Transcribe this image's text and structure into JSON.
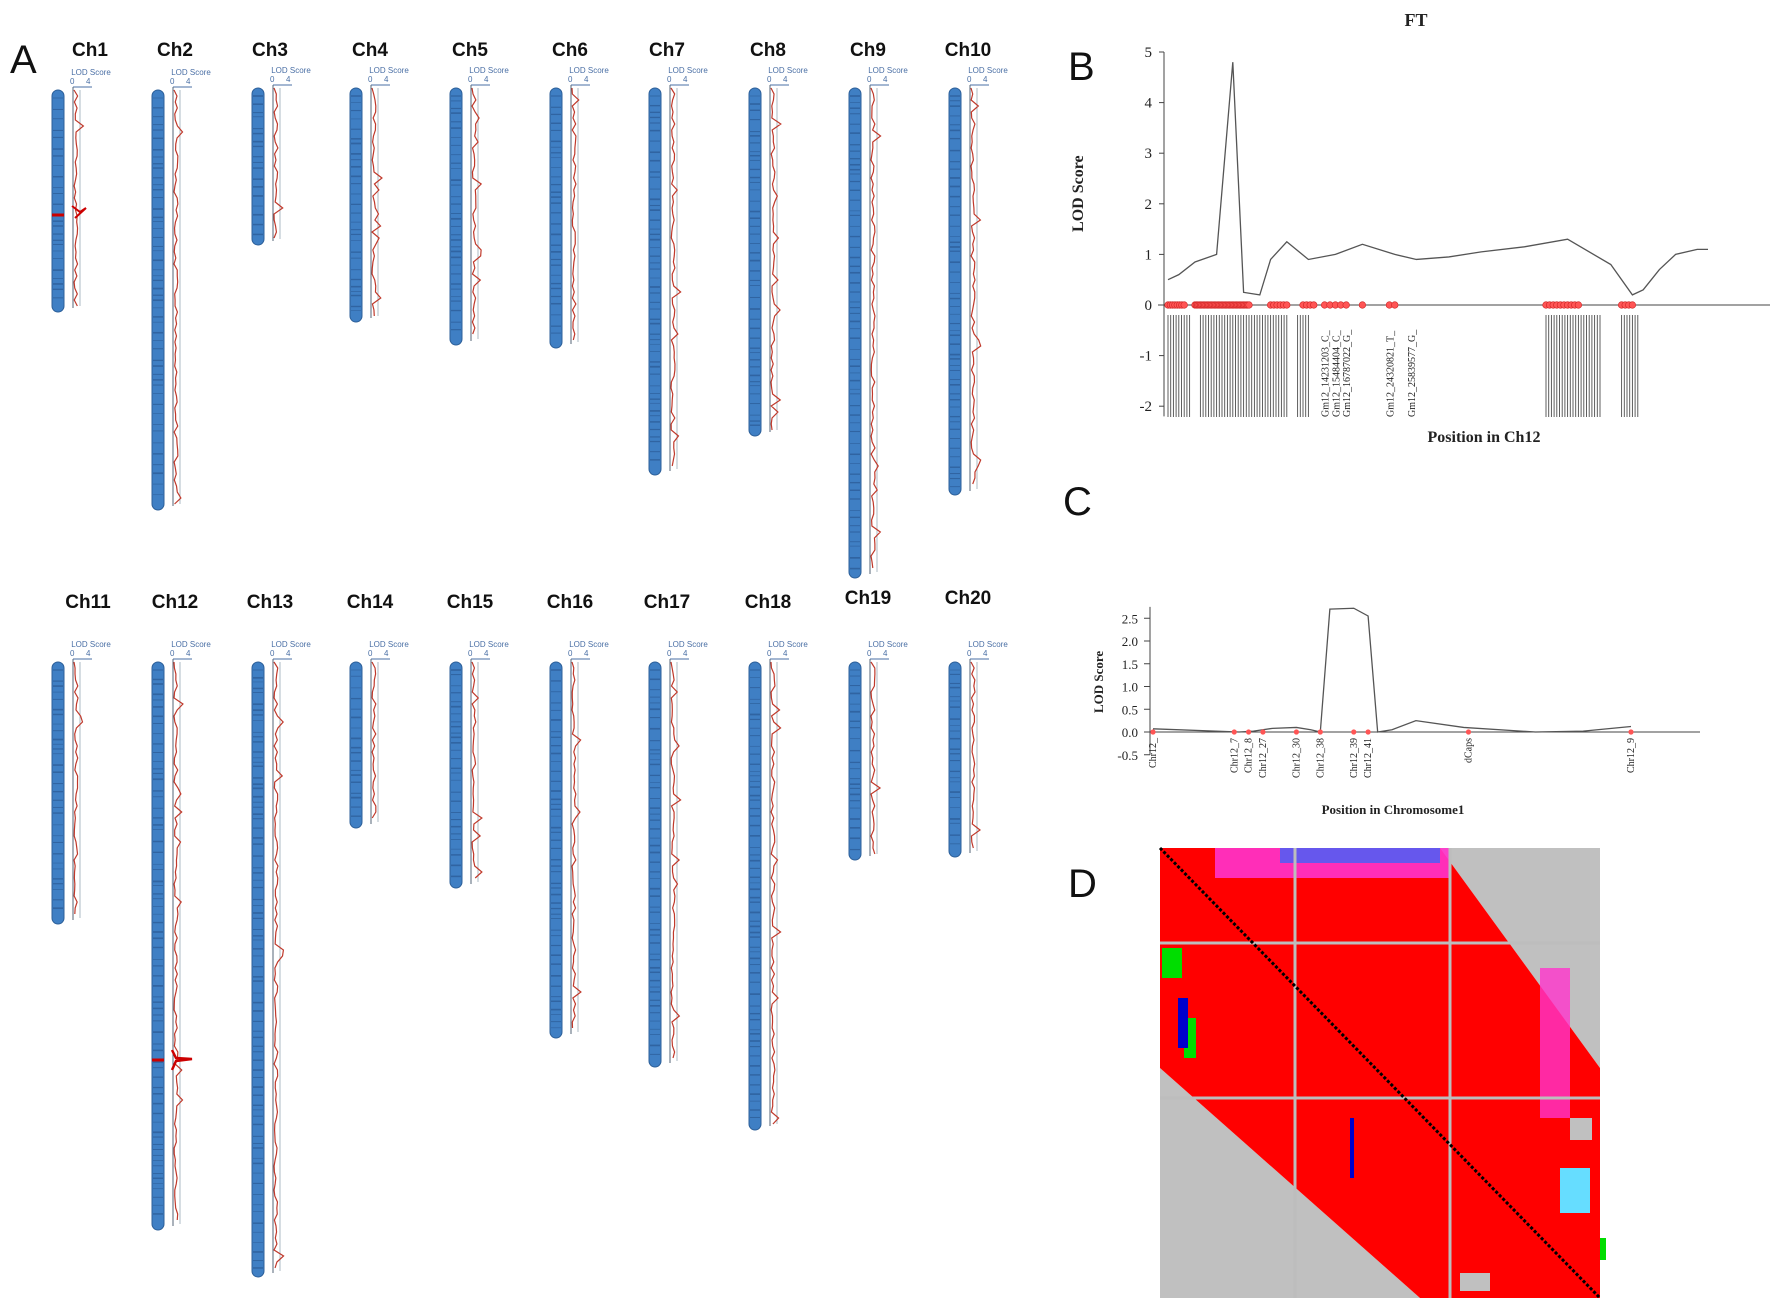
{
  "panel_a": {
    "letter": "A",
    "lod_axis_title": "LOD Score",
    "lod_ticks": [
      "0",
      "4"
    ],
    "chromosomes": [
      {
        "label": "Ch1"
      },
      {
        "label": "Ch2"
      },
      {
        "label": "Ch3"
      },
      {
        "label": "Ch4"
      },
      {
        "label": "Ch5"
      },
      {
        "label": "Ch6"
      },
      {
        "label": "Ch7"
      },
      {
        "label": "Ch8"
      },
      {
        "label": "Ch9"
      },
      {
        "label": "Ch10"
      },
      {
        "label": "Ch11"
      },
      {
        "label": "Ch12"
      },
      {
        "label": "Ch13"
      },
      {
        "label": "Ch14"
      },
      {
        "label": "Ch15"
      },
      {
        "label": "Ch16"
      },
      {
        "label": "Ch17"
      },
      {
        "label": "Ch18"
      },
      {
        "label": "Ch19"
      },
      {
        "label": "Ch20"
      }
    ]
  },
  "chart_data": [
    {
      "panel": "B",
      "type": "line",
      "title": "FT",
      "xlabel": "Position in Ch12",
      "ylabel": "LOD Score",
      "ylim": [
        -2.5,
        5
      ],
      "yticks": [
        5,
        4,
        3,
        2,
        1,
        0,
        -1,
        -2
      ],
      "x": [
        0,
        2,
        5,
        9,
        12,
        14,
        17,
        19,
        22,
        26,
        31,
        36,
        42,
        46,
        52,
        58,
        66,
        74,
        82,
        86,
        88,
        91,
        94,
        98,
        100
      ],
      "y": [
        0.5,
        0.6,
        0.85,
        1.0,
        4.8,
        0.25,
        0.2,
        0.9,
        1.25,
        0.9,
        1.0,
        1.2,
        1.0,
        0.9,
        0.95,
        1.05,
        1.15,
        1.3,
        0.8,
        0.2,
        0.3,
        0.7,
        1.0,
        1.1,
        1.1
      ],
      "marker_labels": [
        "Gm12_14231203_C_",
        "Gm12_15484404_C_",
        "Gm12_16787022_G_",
        "Gm12_24320821_T_",
        "Gm12_25839577_G_"
      ]
    },
    {
      "panel": "C",
      "type": "line",
      "xlabel": "Position in Chromosome1",
      "ylabel": "LOD Score",
      "ylim": [
        -0.5,
        2.75
      ],
      "yticks": [
        "2.5",
        "2.0",
        "1.5",
        "1.0",
        "0.5",
        "0.0",
        "-0.5"
      ],
      "x": [
        0,
        18,
        21,
        25,
        30,
        33,
        35,
        37,
        42,
        45,
        47,
        50,
        55,
        65,
        80,
        90,
        100
      ],
      "y": [
        0.07,
        0.0,
        0.02,
        0.08,
        0.1,
        0.05,
        0.0,
        2.7,
        2.72,
        2.55,
        0.0,
        0.05,
        0.25,
        0.1,
        0.0,
        0.02,
        0.12
      ],
      "marker_labels": [
        "Chr12_",
        "Chr12_7",
        "Chr12_8",
        "Chr12_27",
        "Chr12_30",
        "Chr12_38",
        "Chr12_39",
        "Chr12_41",
        "dCaps",
        "Chr12_9"
      ]
    },
    {
      "panel": "D",
      "type": "heatmap",
      "description_colors": {
        "high_ld": "#ff0000",
        "mid_ld": "#ff33cc",
        "low_ld": "#3366ff",
        "missing": "#c0c0c0",
        "green": "#00dd00",
        "blue": "#0000cc",
        "cyan": "#66ddff"
      }
    }
  ],
  "labels": {
    "b_letter": "B",
    "c_letter": "C",
    "d_letter": "D"
  }
}
